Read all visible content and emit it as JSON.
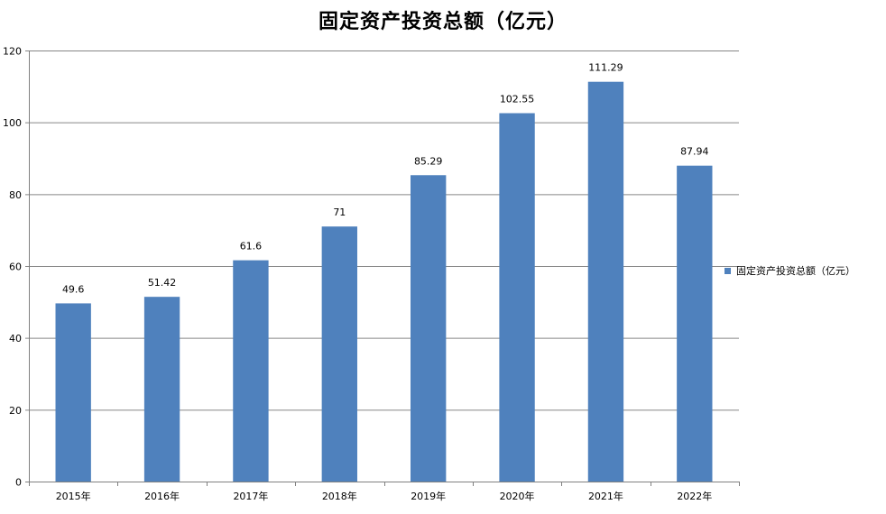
{
  "chart_data": {
    "type": "bar",
    "title": "固定资产投资总额（亿元）",
    "categories": [
      "2015年",
      "2016年",
      "2017年",
      "2018年",
      "2019年",
      "2020年",
      "2021年",
      "2022年"
    ],
    "series": [
      {
        "name": "固定资产投资总额（亿元）",
        "values": [
          49.6,
          51.42,
          61.6,
          71,
          85.29,
          102.55,
          111.29,
          87.94
        ],
        "data_labels": [
          "49.6",
          "51.42",
          "61.6",
          "71",
          "85.29",
          "102.55",
          "111.29",
          "87.94"
        ],
        "color": "#4F81BD"
      }
    ],
    "ylim": [
      0,
      120
    ],
    "yticks": [
      0,
      20,
      40,
      60,
      80,
      100,
      120
    ],
    "xlabel": "",
    "ylabel": "",
    "grid": true,
    "legend": "right"
  }
}
